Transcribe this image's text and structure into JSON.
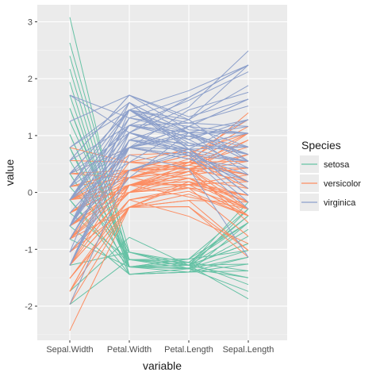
{
  "chart_data": {
    "type": "line",
    "subtype": "parallel-coordinates",
    "xlabel": "variable",
    "ylabel": "value",
    "categories": [
      "Sepal.Width",
      "Petal.Width",
      "Petal.Length",
      "Sepal.Length"
    ],
    "ylim": [
      -2.6,
      3.3
    ],
    "yticks": [
      "-2",
      "-1",
      "0",
      "1",
      "2",
      "3"
    ],
    "grid": true,
    "legend": {
      "title": "Species",
      "position": "right"
    },
    "series": [
      {
        "name": "setosa",
        "color": "#66c2a5",
        "lines": [
          [
            3.08,
            -1.31,
            -1.33,
            -1.02
          ],
          [
            2.63,
            -1.05,
            -1.28,
            -0.17
          ],
          [
            2.4,
            -1.18,
            -1.23,
            -0.53
          ],
          [
            2.17,
            -1.31,
            -1.28,
            -0.9
          ],
          [
            1.94,
            -1.44,
            -1.4,
            -1.14
          ],
          [
            1.71,
            -1.31,
            -1.17,
            -0.29
          ],
          [
            1.48,
            -1.18,
            -1.28,
            -0.41
          ],
          [
            1.25,
            -1.05,
            -1.34,
            -0.77
          ],
          [
            1.02,
            -1.31,
            -1.17,
            -0.53
          ],
          [
            0.79,
            -1.44,
            -1.4,
            -1.26
          ],
          [
            0.56,
            -1.18,
            -1.28,
            -0.9
          ],
          [
            0.33,
            -1.31,
            -1.23,
            -1.38
          ],
          [
            0.1,
            -1.05,
            -1.28,
            -1.5
          ],
          [
            -0.13,
            -1.31,
            -1.34,
            -1.74
          ],
          [
            -0.36,
            -1.18,
            -1.17,
            -1.02
          ],
          [
            -0.59,
            -1.44,
            -1.4,
            -1.38
          ],
          [
            -0.82,
            -1.31,
            -1.28,
            -1.87
          ],
          [
            -1.28,
            -1.05,
            -1.23,
            -1.62
          ],
          [
            -1.74,
            -0.79,
            -1.28,
            -1.26
          ],
          [
            -1.97,
            -1.18,
            -1.34,
            -1.5
          ],
          [
            1.48,
            -1.31,
            -1.34,
            -0.29
          ],
          [
            1.02,
            -1.31,
            -1.28,
            -0.65
          ],
          [
            0.79,
            -1.18,
            -1.23,
            -0.41
          ],
          [
            0.33,
            -1.31,
            -1.4,
            -0.53
          ],
          [
            -0.13,
            -1.44,
            -1.34,
            -1.14
          ]
        ]
      },
      {
        "name": "versicolor",
        "color": "#fc8d62",
        "lines": [
          [
            0.33,
            0.26,
            0.53,
            1.4
          ],
          [
            0.33,
            0.39,
            0.42,
            0.67
          ],
          [
            0.1,
            0.39,
            0.65,
            1.28
          ],
          [
            -1.74,
            0.13,
            0.14,
            -0.41
          ],
          [
            -0.59,
            0.39,
            0.48,
            0.8
          ],
          [
            -0.59,
            0.13,
            0.42,
            -0.17
          ],
          [
            0.56,
            0.53,
            0.53,
            0.55
          ],
          [
            -1.51,
            -0.26,
            -0.25,
            -1.14
          ],
          [
            -0.36,
            0.13,
            0.48,
            0.92
          ],
          [
            -0.82,
            0.26,
            0.08,
            -0.77
          ],
          [
            -2.43,
            -0.26,
            -0.14,
            -1.02
          ],
          [
            -0.13,
            0.39,
            0.25,
            0.07
          ],
          [
            -1.97,
            -0.26,
            0.14,
            0.19
          ],
          [
            -0.36,
            0.26,
            0.53,
            0.31
          ],
          [
            -0.36,
            0.13,
            -0.08,
            -0.29
          ],
          [
            0.1,
            0.26,
            0.37,
            1.04
          ],
          [
            -0.13,
            0.39,
            0.42,
            -0.29
          ],
          [
            -0.82,
            -0.26,
            0.19,
            -0.05
          ],
          [
            -1.97,
            0.39,
            0.42,
            0.43
          ],
          [
            -1.28,
            -0.13,
            0.08,
            -0.29
          ],
          [
            0.33,
            0.79,
            0.59,
            0.07
          ],
          [
            -0.59,
            0.13,
            0.14,
            0.31
          ],
          [
            -1.28,
            0.39,
            0.65,
            0.55
          ],
          [
            -0.59,
            0.0,
            0.53,
            0.31
          ],
          [
            -0.36,
            0.13,
            0.31,
            0.67
          ],
          [
            -0.13,
            0.26,
            0.37,
            0.92
          ],
          [
            -0.59,
            0.26,
            0.59,
            1.16
          ],
          [
            -0.13,
            0.66,
            0.7,
            1.04
          ],
          [
            -0.36,
            0.39,
            0.42,
            0.19
          ],
          [
            -1.05,
            -0.26,
            -0.14,
            -0.17
          ],
          [
            -1.51,
            -0.13,
            0.02,
            -0.41
          ],
          [
            -1.51,
            -0.26,
            -0.03,
            -0.41
          ],
          [
            -0.82,
            0.0,
            0.08,
            -0.05
          ],
          [
            -0.82,
            0.53,
            0.76,
            0.19
          ],
          [
            -0.13,
            0.39,
            0.42,
            -0.53
          ],
          [
            0.79,
            0.53,
            0.42,
            0.19
          ],
          [
            0.1,
            0.39,
            0.53,
            1.04
          ],
          [
            -1.74,
            0.13,
            0.37,
            0.55
          ],
          [
            -0.13,
            0.13,
            0.19,
            -0.29
          ],
          [
            -1.28,
            0.13,
            0.14,
            -0.41
          ],
          [
            -1.05,
            0.0,
            0.37,
            -0.41
          ],
          [
            -0.13,
            0.26,
            0.48,
            0.31
          ],
          [
            -1.05,
            0.0,
            0.14,
            -0.05
          ],
          [
            -1.74,
            -0.26,
            -0.25,
            -1.02
          ],
          [
            -0.82,
            0.13,
            0.25,
            -0.29
          ],
          [
            -0.13,
            0.0,
            0.25,
            -0.17
          ],
          [
            -0.36,
            0.13,
            0.25,
            -0.17
          ],
          [
            -0.36,
            0.13,
            0.31,
            0.43
          ],
          [
            -1.28,
            -0.13,
            -0.42,
            -0.9
          ],
          [
            -0.59,
            0.13,
            0.19,
            -0.17
          ]
        ]
      },
      {
        "name": "virginica",
        "color": "#8da0cb",
        "lines": [
          [
            0.56,
            1.71,
            1.28,
            0.55
          ],
          [
            -0.82,
            0.92,
            0.76,
            -0.05
          ],
          [
            -0.13,
            1.18,
            1.22,
            1.52
          ],
          [
            -0.36,
            0.79,
            1.05,
            0.55
          ],
          [
            -0.13,
            1.31,
            1.16,
            0.8
          ],
          [
            -0.13,
            1.18,
            1.62,
            2.12
          ],
          [
            -1.28,
            0.66,
            0.42,
            -1.14
          ],
          [
            -0.36,
            0.79,
            1.45,
            1.76
          ],
          [
            -1.28,
            0.79,
            1.16,
            1.04
          ],
          [
            1.25,
            1.71,
            1.33,
            1.64
          ],
          [
            0.33,
            1.05,
            0.76,
            0.8
          ],
          [
            -0.82,
            0.92,
            0.87,
            0.67
          ],
          [
            -0.13,
            1.18,
            0.99,
            1.16
          ],
          [
            -1.28,
            1.05,
            0.7,
            -0.17
          ],
          [
            -0.59,
            1.58,
            0.76,
            -0.05
          ],
          [
            0.33,
            1.45,
            0.87,
            0.67
          ],
          [
            -0.13,
            0.79,
            0.99,
            0.8
          ],
          [
            1.71,
            1.31,
            1.67,
            2.24
          ],
          [
            -1.05,
            1.45,
            1.79,
            2.24
          ],
          [
            -1.97,
            0.39,
            0.7,
            0.19
          ],
          [
            0.33,
            1.45,
            1.05,
            1.28
          ],
          [
            -0.59,
            1.05,
            0.65,
            -0.29
          ],
          [
            -0.59,
            1.05,
            1.67,
            2.24
          ],
          [
            -0.82,
            0.79,
            0.65,
            0.55
          ],
          [
            0.56,
            1.18,
            1.05,
            1.04
          ],
          [
            0.33,
            0.79,
            1.16,
            1.64
          ],
          [
            -0.59,
            0.79,
            0.59,
            0.43
          ],
          [
            -0.13,
            0.79,
            0.65,
            0.31
          ],
          [
            -0.59,
            1.18,
            1.05,
            0.67
          ],
          [
            -0.13,
            0.53,
            1.16,
            1.64
          ],
          [
            -0.59,
            0.92,
            1.28,
            1.88
          ],
          [
            1.71,
            1.05,
            1.5,
            2.49
          ],
          [
            -0.59,
            1.31,
            1.05,
            0.67
          ],
          [
            -0.59,
            0.39,
            0.76,
            0.55
          ],
          [
            -1.05,
            0.26,
            1.05,
            0.31
          ],
          [
            -0.13,
            1.45,
            1.28,
            2.24
          ],
          [
            0.79,
            1.58,
            1.05,
            0.55
          ],
          [
            0.1,
            0.79,
            0.99,
            0.67
          ],
          [
            -0.13,
            0.79,
            0.59,
            0.19
          ],
          [
            0.1,
            1.18,
            0.93,
            1.28
          ],
          [
            0.1,
            1.58,
            1.05,
            1.04
          ],
          [
            0.1,
            1.45,
            0.76,
            1.28
          ],
          [
            -0.82,
            0.92,
            0.76,
            -0.05
          ],
          [
            0.33,
            1.45,
            1.22,
            1.16
          ],
          [
            0.56,
            1.71,
            1.1,
            1.04
          ],
          [
            -0.13,
            1.45,
            0.82,
            1.04
          ],
          [
            -1.28,
            0.92,
            0.7,
            0.55
          ],
          [
            -0.13,
            1.05,
            0.82,
            0.8
          ],
          [
            0.79,
            1.45,
            0.93,
            0.43
          ],
          [
            -0.13,
            0.79,
            0.76,
            0.07
          ]
        ]
      }
    ]
  }
}
